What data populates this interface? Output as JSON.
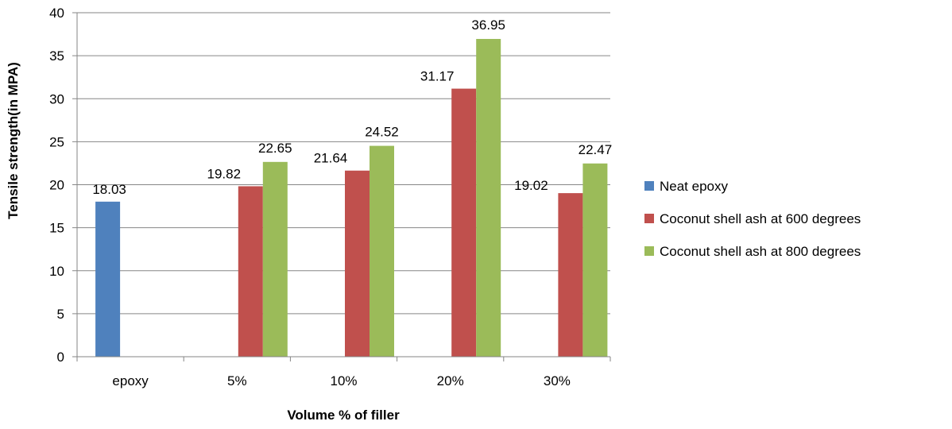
{
  "chart_data": {
    "type": "bar",
    "title": "",
    "xlabel": "Volume % of filler",
    "ylabel": "Tensile strength(in MPA)",
    "categories": [
      "epoxy",
      "5%",
      "10%",
      "20%",
      "30%"
    ],
    "ylim": [
      0,
      40
    ],
    "yticks": [
      "0",
      "5",
      "10",
      "15",
      "20",
      "25",
      "30",
      "35",
      "40"
    ],
    "grid": true,
    "legend_position": "right",
    "series": [
      {
        "name": "Neat epoxy",
        "color": "#4F81BD",
        "values": [
          18.03,
          null,
          null,
          null,
          null
        ],
        "labels": [
          "18.03",
          "",
          "",
          "",
          ""
        ]
      },
      {
        "name": "Coconut shell ash at 600 degrees",
        "color": "#C0504D",
        "values": [
          null,
          19.82,
          21.64,
          31.17,
          19.02
        ],
        "labels": [
          "",
          "19.82",
          "21.64",
          "31.17",
          "19.02"
        ]
      },
      {
        "name": "Coconut shell ash at 800 degrees",
        "color": "#9BBB59",
        "values": [
          null,
          22.65,
          24.52,
          36.95,
          22.47
        ],
        "labels": [
          "",
          "22.65",
          "24.52",
          "36.95",
          "22.47"
        ]
      }
    ]
  }
}
